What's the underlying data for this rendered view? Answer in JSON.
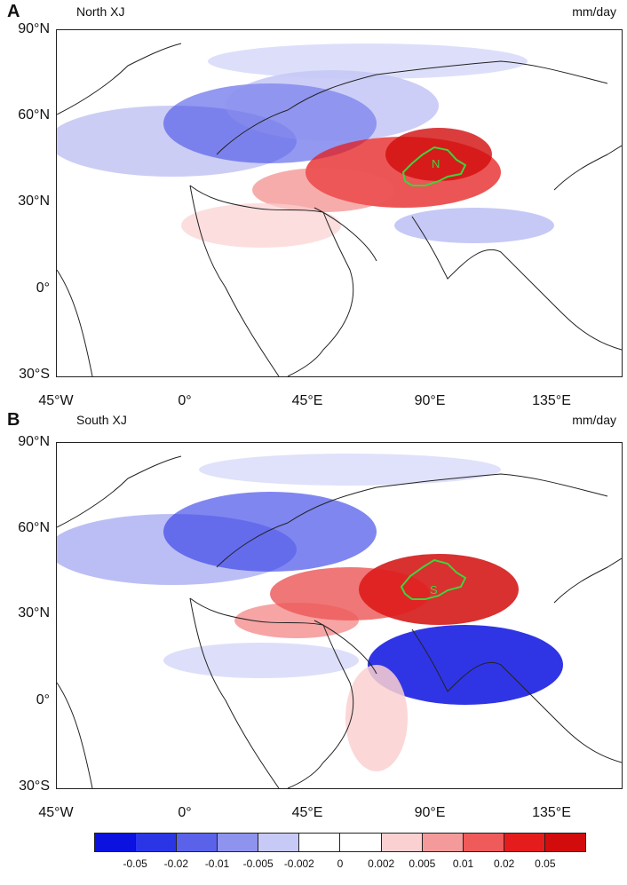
{
  "panels": [
    {
      "letter": "A",
      "title": "North XJ",
      "units": "mm/day",
      "region_label": "N"
    },
    {
      "letter": "B",
      "title": "South XJ",
      "units": "mm/day",
      "region_label": "S"
    }
  ],
  "axes": {
    "lat_ticks": [
      "90°N",
      "60°N",
      "30°N",
      "0°",
      "30°S"
    ],
    "lon_ticks": [
      "45°W",
      "0°",
      "45°E",
      "90°E",
      "135°E"
    ],
    "lat_range": [
      -30,
      90
    ],
    "lon_range": [
      -45,
      160
    ]
  },
  "colorbar": {
    "colors": [
      "#0b12e0",
      "#2a36e6",
      "#5a62ea",
      "#8e93ee",
      "#c7c9f6",
      "#ffffff",
      "#ffffff",
      "#fbd0d0",
      "#f59a9a",
      "#ef5a5a",
      "#e51c1c",
      "#d20c0c"
    ],
    "labels": [
      "-0.05",
      "-0.02",
      "-0.01",
      "-0.005",
      "-0.002",
      "0",
      "0.002",
      "0.005",
      "0.01",
      "0.02",
      "0.05"
    ]
  },
  "colors": {
    "land_outline": "#222222",
    "region_outline": "#3dd43d"
  }
}
